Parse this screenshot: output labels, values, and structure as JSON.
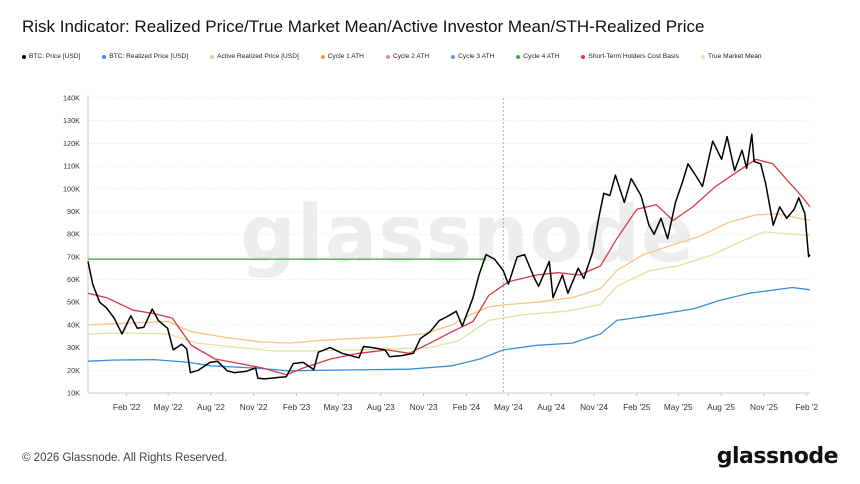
{
  "header": {
    "title": "Risk Indicator: Realized Price/True Market Mean/Active Investor Mean/STH-Realized Price"
  },
  "legend": [
    {
      "label": "BTC: Price [USD]",
      "color": "#000000",
      "icon": "legend-dot"
    },
    {
      "label": "BTC: Realized Price [USD]",
      "color": "#3a8fd9",
      "icon": "legend-dot"
    },
    {
      "label": "Active Realized Price [USD]",
      "color": "#f7c585",
      "icon": "legend-dot"
    },
    {
      "label": "Cycle 1 ATH",
      "color": "#f2a23a",
      "icon": "legend-dot"
    },
    {
      "label": "Cycle 2 ATH",
      "color": "#f08a8a",
      "icon": "legend-dot"
    },
    {
      "label": "Cycle 3 ATH",
      "color": "#5b9ee6",
      "icon": "legend-dot"
    },
    {
      "label": "Cycle 4 ATH",
      "color": "#3aaa35",
      "icon": "legend-dot"
    },
    {
      "label": "Short-Term Holders Cost Basis",
      "color": "#d63a4a",
      "icon": "legend-dot"
    },
    {
      "label": "True Market Mean",
      "color": "#d6e8a0",
      "icon": "legend-dot"
    }
  ],
  "watermark": "glassnode",
  "footer": {
    "copyright": "© 2026 Glassnode. All Rights Reserved.",
    "logo_text": "glassnode"
  },
  "chart_data": {
    "type": "line",
    "title": "Risk Indicator: Realized Price/True Market Mean/Active Investor Mean/STH-Realized Price",
    "xlabel": "",
    "ylabel": "",
    "x_ticks": [
      "Feb '22",
      "May '22",
      "Aug '22",
      "Nov '22",
      "Feb '23",
      "May '23",
      "Aug '23",
      "Nov '23",
      "Feb '24",
      "May '24",
      "Aug '24",
      "Nov '24",
      "Feb '25",
      "May '25",
      "Aug '25",
      "Nov '25",
      "Feb '2"
    ],
    "y_ticks": [
      "10K",
      "20K",
      "30K",
      "40K",
      "50K",
      "60K",
      "70K",
      "80K",
      "90K",
      "100K",
      "110K",
      "120K",
      "130K",
      "140K"
    ],
    "ylim": [
      10000,
      140000
    ],
    "x_range": [
      "2021-11-10",
      "2026-02-08"
    ],
    "grid": "horizontal",
    "legend_position": "top",
    "vertical_marker": "2024-04-20",
    "series": [
      {
        "name": "BTC: Price [USD]",
        "color": "#000000",
        "x": [
          "2021-11-10",
          "2021-11-20",
          "2021-12-05",
          "2021-12-20",
          "2022-01-05",
          "2022-01-22",
          "2022-02-10",
          "2022-02-24",
          "2022-03-10",
          "2022-03-28",
          "2022-04-10",
          "2022-04-30",
          "2022-05-12",
          "2022-05-30",
          "2022-06-10",
          "2022-06-18",
          "2022-07-05",
          "2022-07-30",
          "2022-08-15",
          "2022-09-05",
          "2022-09-20",
          "2022-10-15",
          "2022-11-05",
          "2022-11-10",
          "2022-11-25",
          "2022-12-20",
          "2023-01-10",
          "2023-01-25",
          "2023-02-15",
          "2023-03-10",
          "2023-03-20",
          "2023-04-14",
          "2023-05-10",
          "2023-06-15",
          "2023-06-25",
          "2023-07-15",
          "2023-08-10",
          "2023-08-20",
          "2023-09-15",
          "2023-10-10",
          "2023-10-25",
          "2023-11-15",
          "2023-12-05",
          "2023-12-20",
          "2024-01-10",
          "2024-01-23",
          "2024-02-15",
          "2024-02-28",
          "2024-03-14",
          "2024-04-01",
          "2024-04-20",
          "2024-05-01",
          "2024-05-20",
          "2024-06-05",
          "2024-06-25",
          "2024-07-05",
          "2024-07-28",
          "2024-08-05",
          "2024-08-25",
          "2024-09-06",
          "2024-09-28",
          "2024-10-10",
          "2024-10-29",
          "2024-11-12",
          "2024-11-22",
          "2024-12-05",
          "2024-12-17",
          "2025-01-05",
          "2025-01-20",
          "2025-02-10",
          "2025-02-27",
          "2025-03-10",
          "2025-03-25",
          "2025-04-08",
          "2025-04-25",
          "2025-05-10",
          "2025-05-22",
          "2025-06-10",
          "2025-06-22",
          "2025-07-14",
          "2025-08-02",
          "2025-08-14",
          "2025-08-30",
          "2025-09-15",
          "2025-09-25",
          "2025-10-06",
          "2025-10-11",
          "2025-10-25",
          "2025-11-05",
          "2025-11-21",
          "2025-12-05",
          "2025-12-20",
          "2026-01-05",
          "2026-01-15",
          "2026-01-28",
          "2026-02-05",
          "2026-02-08"
        ],
        "y": [
          68000,
          58000,
          50000,
          47500,
          43000,
          36000,
          44000,
          38500,
          39000,
          47000,
          42000,
          38500,
          29000,
          31500,
          29500,
          19000,
          20000,
          23500,
          24000,
          19800,
          19000,
          19500,
          21000,
          16500,
          16200,
          16800,
          17200,
          23000,
          23500,
          20300,
          28000,
          30000,
          27500,
          25500,
          30500,
          30000,
          29000,
          26000,
          26500,
          27500,
          34000,
          37000,
          42000,
          43500,
          46000,
          39500,
          52000,
          62000,
          71000,
          69000,
          64000,
          58000,
          70000,
          71000,
          61000,
          57000,
          68000,
          52000,
          62000,
          54000,
          65000,
          60500,
          72000,
          88000,
          98000,
          97000,
          106000,
          94000,
          104500,
          97000,
          84000,
          80000,
          87000,
          78000,
          94000,
          103000,
          111000,
          105000,
          101000,
          121000,
          113000,
          123000,
          108000,
          117000,
          109000,
          124000,
          112000,
          111000,
          102000,
          84000,
          92000,
          87000,
          91000,
          96000,
          89000,
          70000,
          71000
        ]
      },
      {
        "name": "Short-Term Holders Cost Basis",
        "color": "#d63a4a",
        "x": [
          "2021-11-10",
          "2021-12-20",
          "2022-02-15",
          "2022-04-01",
          "2022-05-10",
          "2022-06-20",
          "2022-08-10",
          "2022-10-01",
          "2022-11-20",
          "2023-01-10",
          "2023-02-15",
          "2023-04-15",
          "2023-06-15",
          "2023-08-15",
          "2023-10-01",
          "2023-11-15",
          "2024-01-01",
          "2024-02-15",
          "2024-03-20",
          "2024-05-01",
          "2024-07-01",
          "2024-08-15",
          "2024-10-01",
          "2024-11-15",
          "2024-12-20",
          "2025-02-01",
          "2025-03-15",
          "2025-04-20",
          "2025-06-01",
          "2025-07-20",
          "2025-09-01",
          "2025-10-15",
          "2025-11-20",
          "2025-12-20",
          "2026-01-20",
          "2026-02-08"
        ],
        "y": [
          54000,
          52000,
          46500,
          45000,
          43000,
          31000,
          25000,
          23000,
          21000,
          18000,
          21000,
          25000,
          27500,
          29000,
          27500,
          32000,
          37000,
          41500,
          53000,
          59000,
          62000,
          63000,
          62000,
          66000,
          78000,
          91000,
          93000,
          86000,
          92000,
          101000,
          107000,
          113000,
          111000,
          104000,
          97000,
          92000
        ]
      },
      {
        "name": "Active Realized Price [USD]",
        "color": "#f7c585",
        "x": [
          "2021-11-10",
          "2022-01-01",
          "2022-03-01",
          "2022-05-01",
          "2022-06-20",
          "2022-09-01",
          "2022-11-15",
          "2023-01-15",
          "2023-04-15",
          "2023-08-01",
          "2023-11-01",
          "2024-01-01",
          "2024-02-15",
          "2024-03-20",
          "2024-05-01",
          "2024-07-01",
          "2024-09-15",
          "2024-11-15",
          "2024-12-20",
          "2025-02-15",
          "2025-04-15",
          "2025-06-15",
          "2025-08-15",
          "2025-10-15",
          "2025-12-01",
          "2026-01-15",
          "2026-02-08"
        ],
        "y": [
          40000,
          40500,
          41000,
          41500,
          37000,
          34500,
          32500,
          32000,
          33500,
          34500,
          36000,
          40000,
          45000,
          48000,
          49000,
          50000,
          52000,
          56000,
          64000,
          71000,
          75000,
          79000,
          85000,
          88500,
          89000,
          87000,
          86000
        ]
      },
      {
        "name": "True Market Mean",
        "color": "#d6e8a0",
        "x": [
          "2021-11-10",
          "2022-02-01",
          "2022-05-01",
          "2022-07-01",
          "2022-10-01",
          "2022-12-15",
          "2023-03-01",
          "2023-06-01",
          "2023-09-01",
          "2023-11-15",
          "2024-01-15",
          "2024-03-20",
          "2024-06-01",
          "2024-09-01",
          "2024-11-15",
          "2024-12-20",
          "2025-03-01",
          "2025-05-01",
          "2025-07-15",
          "2025-09-15",
          "2025-11-01",
          "2026-01-01",
          "2026-02-08"
        ],
        "y": [
          36000,
          36500,
          36000,
          32000,
          30000,
          28500,
          28500,
          29000,
          29500,
          30000,
          33000,
          42000,
          44500,
          46000,
          49000,
          57000,
          64000,
          66000,
          71000,
          77000,
          81000,
          80000,
          79500
        ]
      },
      {
        "name": "BTC: Realized Price [USD]",
        "color": "#3a8fd9",
        "x": [
          "2021-11-10",
          "2022-01-01",
          "2022-04-01",
          "2022-06-15",
          "2022-08-01",
          "2022-11-01",
          "2023-01-15",
          "2023-06-01",
          "2023-10-01",
          "2024-01-01",
          "2024-03-01",
          "2024-04-20",
          "2024-07-01",
          "2024-09-15",
          "2024-11-15",
          "2024-12-20",
          "2025-03-01",
          "2025-06-01",
          "2025-08-01",
          "2025-10-01",
          "2026-01-01",
          "2026-02-08"
        ],
        "y": [
          24000,
          24500,
          24700,
          23500,
          22000,
          21000,
          19800,
          20200,
          20500,
          22000,
          25000,
          29000,
          31000,
          32000,
          36000,
          42000,
          44000,
          47000,
          51000,
          54000,
          56500,
          55500
        ]
      },
      {
        "name": "Cycle 4 ATH",
        "color": "#3aaa35",
        "x": [
          "2021-11-10",
          "2024-03-14"
        ],
        "y": [
          69000,
          69000
        ]
      }
    ]
  }
}
